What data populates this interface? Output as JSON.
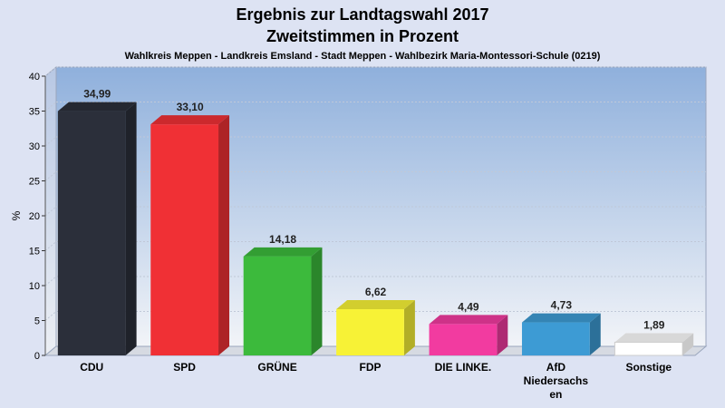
{
  "chart_data": {
    "type": "bar",
    "title": "Ergebnis zur Landtagswahl 2017",
    "title_line2": "Zweitstimmen in Prozent",
    "subtitle": "Wahlkreis Meppen - Landkreis Emsland - Stadt Meppen - Wahlbezirk Maria-Montessori-Schule (0219)",
    "ylabel": "%",
    "xlabel": "",
    "ylim": [
      0,
      40
    ],
    "yticks": [
      0,
      5,
      10,
      15,
      20,
      25,
      30,
      35,
      40
    ],
    "grid": true,
    "legend": "none",
    "categories": [
      [
        "CDU"
      ],
      [
        "SPD"
      ],
      [
        "GRÜNE"
      ],
      [
        "FDP"
      ],
      [
        "DIE LINKE."
      ],
      [
        "AfD",
        "Niedersachs",
        "en"
      ],
      [
        "Sonstige"
      ]
    ],
    "values": [
      34.99,
      33.1,
      14.18,
      6.62,
      4.49,
      4.73,
      1.89
    ],
    "value_labels": [
      "34,99",
      "33,10",
      "14,18",
      "6,62",
      "4,49",
      "4,73",
      "1,89"
    ],
    "colors": [
      "#2b2f3a",
      "#f03035",
      "#3cba3c",
      "#f7f236",
      "#f23ba0",
      "#3d9bd4",
      "#ffffff"
    ]
  }
}
